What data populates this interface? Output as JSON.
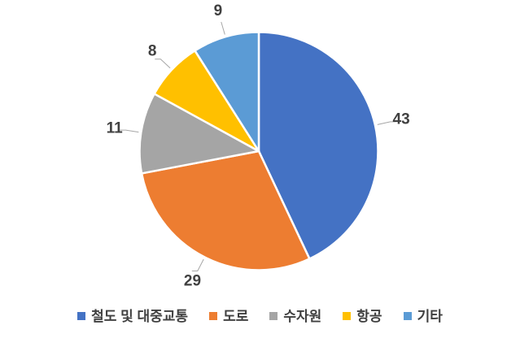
{
  "chart_data": {
    "type": "pie",
    "title": "",
    "labels": [
      "철도 및 대중교통",
      "도로",
      "수자원",
      "항공",
      "기타"
    ],
    "values": [
      43,
      29,
      11,
      8,
      9
    ],
    "colors": [
      "#4472C4",
      "#ED7D31",
      "#A5A5A5",
      "#FFC000",
      "#5B9BD5"
    ],
    "start_angle_deg": 0,
    "direction": "clockwise",
    "data_labels": {
      "position": "outside_end",
      "leader_lines": true,
      "color": "#404040"
    },
    "leader_line_color": "#A6A6A6",
    "slice_border_color": "#FFFFFF",
    "legend": {
      "position": "bottom",
      "marker": "square"
    },
    "background": "#FFFFFF"
  }
}
